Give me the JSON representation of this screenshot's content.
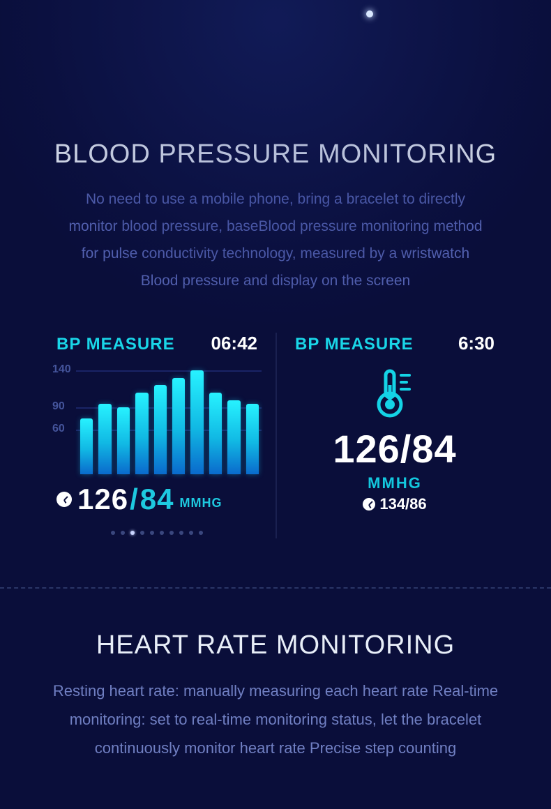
{
  "bp_section": {
    "heading": "BLOOD PRESSURE MONITORING",
    "description": "No need to use a mobile phone, bring a bracelet to directly monitor blood pressure, baseBlood pressure monitoring method for pulse conductivity technology, measured by a wristwatch Blood pressure and display on the screen"
  },
  "left_panel": {
    "label": "BP MEASURE",
    "time": "06:42",
    "chart": {
      "type": "bar",
      "y_ticks": [
        140,
        90,
        60
      ],
      "y_max": 150,
      "values": [
        75,
        95,
        90,
        110,
        120,
        130,
        140,
        110,
        100,
        95
      ],
      "bar_gradient_top": "#27f2ff",
      "bar_gradient_mid": "#11b9e4",
      "bar_gradient_bot": "#0a6acc",
      "grid_color": "#1a2466",
      "tick_color": "#45559c"
    },
    "reading_sys": "126",
    "reading_dia": "84",
    "unit": "MMHG",
    "pager_count": 10,
    "pager_active": 2
  },
  "right_panel": {
    "label": "BP MEASURE",
    "time": "6:30",
    "reading": "126/84",
    "unit": "MMHG",
    "sub_reading": "134/86",
    "accent_color": "#14d3e6"
  },
  "hr_section": {
    "heading": "HEART RATE MONITORING",
    "description": "Resting heart rate: manually measuring each heart rate Real-time monitoring: set to real-time monitoring status, let the bracelet continuously monitor heart rate Precise step counting"
  },
  "colors": {
    "background": "#0a0e3a",
    "heading": "#e8eef8",
    "muted": "#5563b3",
    "accent": "#19d6e8"
  }
}
